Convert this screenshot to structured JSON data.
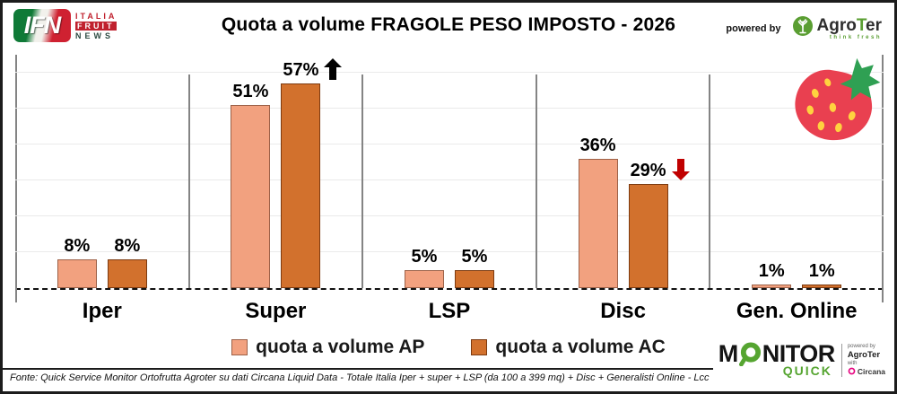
{
  "header": {
    "title": "Quota a volume FRAGOLE PESO IMPOSTO - 2026",
    "ifn": {
      "main": "IFN",
      "line1": "ITALIA",
      "line2": "FRUIT",
      "line3": "NEWS"
    },
    "powered_by": "powered by",
    "agroter": {
      "name_pre": "Agro",
      "name_t": "T",
      "name_post": "er",
      "tagline": "think fresh"
    }
  },
  "chart_data": {
    "type": "bar",
    "title": "Quota a volume FRAGOLE PESO IMPOSTO - 2026",
    "categories": [
      "Iper",
      "Super",
      "LSP",
      "Disc",
      "Gen. Online"
    ],
    "series": [
      {
        "name": "quota a volume AP",
        "color": "#F2A17F",
        "border": "#9C6148",
        "values": [
          8,
          51,
          5,
          36,
          1
        ]
      },
      {
        "name": "quota a volume AC",
        "color": "#D2712D",
        "border": "#7C3A10",
        "values": [
          8,
          57,
          5,
          29,
          1
        ]
      }
    ],
    "value_suffix": "%",
    "ylim": [
      0,
      60
    ],
    "gridline_step": 10,
    "grid": true,
    "baseline_style": "dashed",
    "legend_position": "bottom",
    "xlabel": "",
    "ylabel": "",
    "annotations": [
      {
        "category_index": 1,
        "series_index": 1,
        "dir": "up",
        "color": "#000000"
      },
      {
        "category_index": 3,
        "series_index": 1,
        "dir": "down",
        "color": "#C00000"
      }
    ]
  },
  "legend": [
    {
      "label": "quota a volume AP",
      "color": "#F2A17F",
      "border": "#9C6148"
    },
    {
      "label": "quota a volume AC",
      "color": "#D2712D",
      "border": "#7C3A10"
    }
  ],
  "footer": {
    "source": "Fonte: Quick Service Monitor Ortofrutta Agroter su dati Circana Liquid Data - Totale Italia Iper + super + LSP (da 100 a 399 mq) + Disc + Generalisti Online - Lcc"
  },
  "monitor_logo": {
    "monitor_pre": "M",
    "monitor_post": "NITOR",
    "quick": "QUICK",
    "powered_by": "powered by",
    "agroter": "AgroTer",
    "with": "with",
    "circana": "Circana"
  },
  "icons": {
    "strawberry": "strawberry-icon",
    "agroter_tree": "agroter-tree-icon",
    "magnifier": "magnifier-icon",
    "arrow_up": "trend-arrow-up-icon",
    "arrow_down": "trend-arrow-down-icon",
    "circana_ring": "circana-icon"
  },
  "colors": {
    "series_ap": "#F2A17F",
    "series_ac": "#D2712D",
    "arrow_up": "#000000",
    "arrow_down": "#C00000",
    "grid": "#EAEAEA",
    "separator": "#848484",
    "brand_green": "#56A531",
    "brand_red": "#CF2131"
  }
}
